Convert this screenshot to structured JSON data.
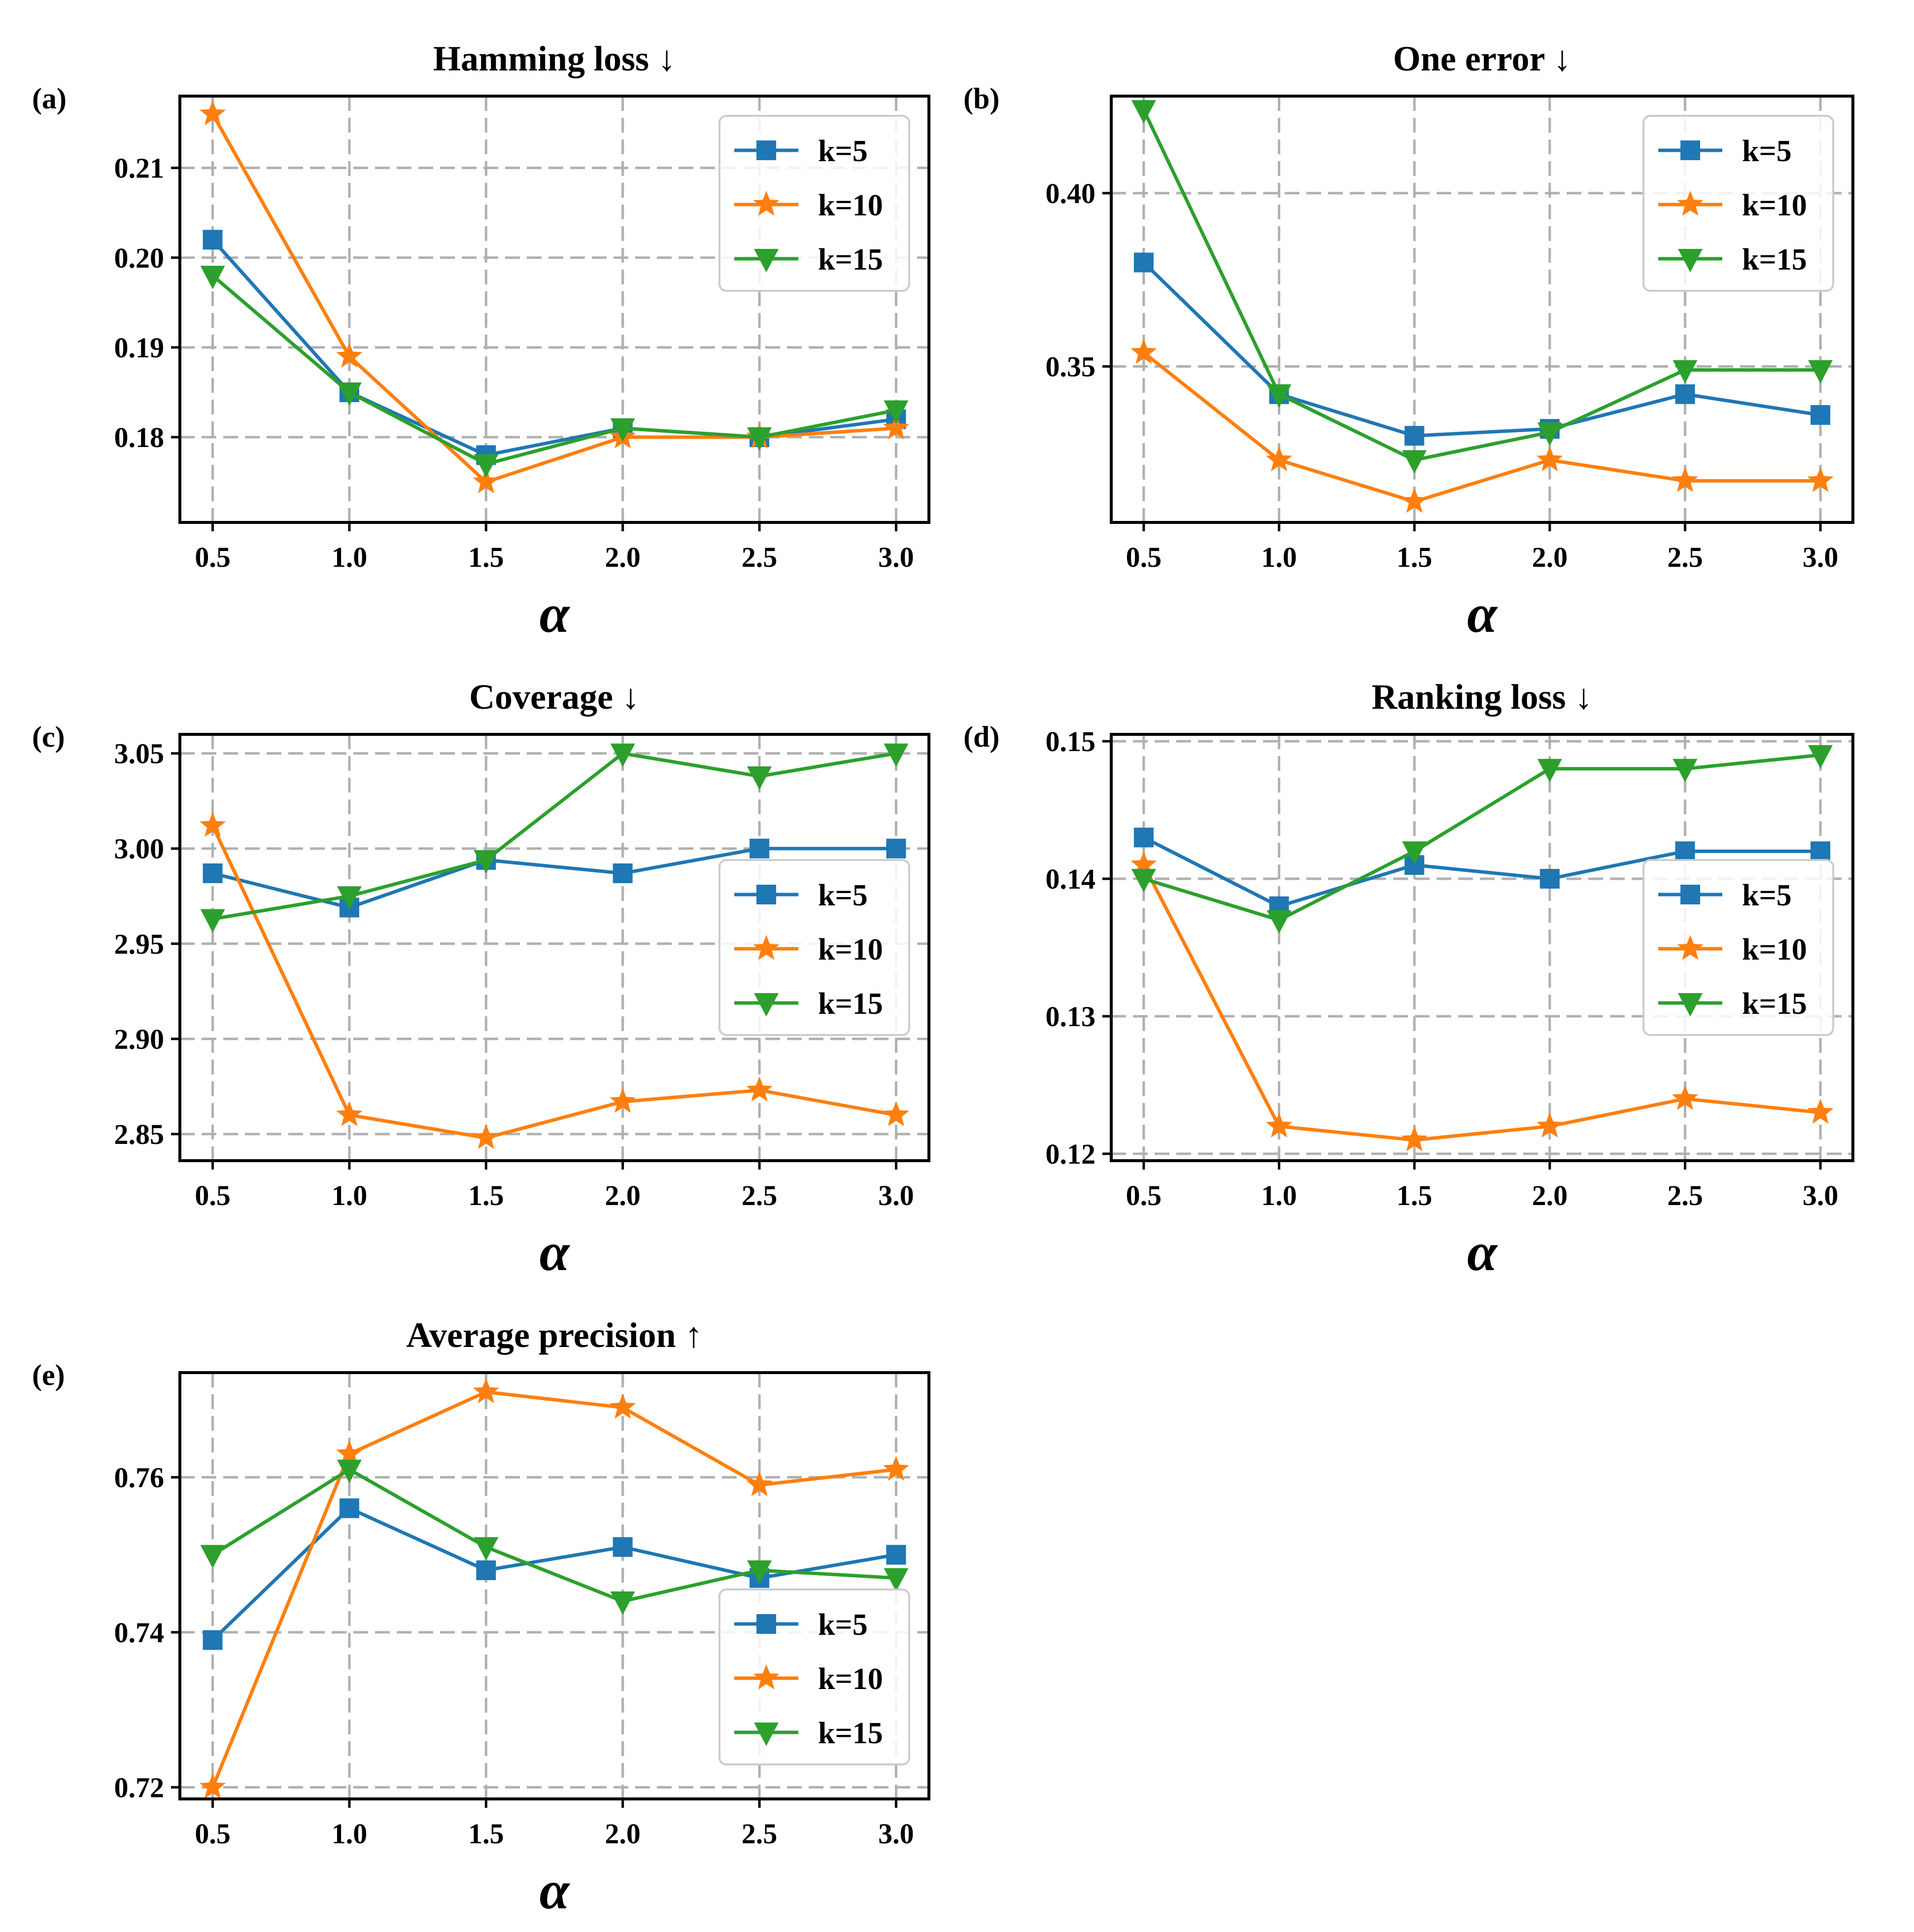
{
  "colors": {
    "k5": "#1f77b4",
    "k10": "#ff7f0e",
    "k15": "#2ca02c"
  },
  "chart_data": [
    {
      "type": "line",
      "panel_label": "(a)",
      "title": "Hamming loss ↓",
      "xlabel": "α",
      "ylabel": "",
      "x": [
        0.5,
        1.0,
        1.5,
        2.0,
        2.5,
        3.0
      ],
      "xticks": [
        "0.5",
        "1.0",
        "1.5",
        "2.0",
        "2.5",
        "3.0"
      ],
      "xlim": [
        0.38,
        3.12
      ],
      "yticks": [
        "0.18",
        "0.19",
        "0.20",
        "0.21"
      ],
      "ylim": [
        0.1705,
        0.218
      ],
      "grid": true,
      "legend_position": "upper-right",
      "series": [
        {
          "name": "k=5",
          "marker": "square",
          "color_key": "k5",
          "values": [
            0.202,
            0.185,
            0.178,
            0.181,
            0.18,
            0.182
          ]
        },
        {
          "name": "k=10",
          "marker": "star",
          "color_key": "k10",
          "values": [
            0.216,
            0.189,
            0.175,
            0.18,
            0.18,
            0.181
          ]
        },
        {
          "name": "k=15",
          "marker": "triangle-down",
          "color_key": "k15",
          "values": [
            0.198,
            0.185,
            0.177,
            0.181,
            0.18,
            0.183
          ]
        }
      ]
    },
    {
      "type": "line",
      "panel_label": "(b)",
      "title": "One error ↓",
      "xlabel": "α",
      "ylabel": "",
      "x": [
        0.5,
        1.0,
        1.5,
        2.0,
        2.5,
        3.0
      ],
      "xticks": [
        "0.5",
        "1.0",
        "1.5",
        "2.0",
        "2.5",
        "3.0"
      ],
      "xlim": [
        0.38,
        3.12
      ],
      "yticks": [
        "0.35",
        "0.40"
      ],
      "ylim": [
        0.305,
        0.428
      ],
      "grid": true,
      "legend_position": "upper-right",
      "series": [
        {
          "name": "k=5",
          "marker": "square",
          "color_key": "k5",
          "values": [
            0.38,
            0.342,
            0.33,
            0.332,
            0.342,
            0.336
          ]
        },
        {
          "name": "k=10",
          "marker": "star",
          "color_key": "k10",
          "values": [
            0.354,
            0.323,
            0.311,
            0.323,
            0.317,
            0.317
          ]
        },
        {
          "name": "k=15",
          "marker": "triangle-down",
          "color_key": "k15",
          "values": [
            0.424,
            0.342,
            0.323,
            0.331,
            0.349,
            0.349
          ]
        }
      ]
    },
    {
      "type": "line",
      "panel_label": "(c)",
      "title": "Coverage ↓",
      "xlabel": "α",
      "ylabel": "",
      "x": [
        0.5,
        1.0,
        1.5,
        2.0,
        2.5,
        3.0
      ],
      "xticks": [
        "0.5",
        "1.0",
        "1.5",
        "2.0",
        "2.5",
        "3.0"
      ],
      "xlim": [
        0.38,
        3.12
      ],
      "yticks": [
        "2.85",
        "2.90",
        "2.95",
        "3.00",
        "3.05"
      ],
      "ylim": [
        2.836,
        3.06
      ],
      "grid": true,
      "legend_position": "center-right",
      "series": [
        {
          "name": "k=5",
          "marker": "square",
          "color_key": "k5",
          "values": [
            2.987,
            2.969,
            2.994,
            2.987,
            3.0,
            3.0
          ]
        },
        {
          "name": "k=10",
          "marker": "star",
          "color_key": "k10",
          "values": [
            3.012,
            2.86,
            2.848,
            2.867,
            2.873,
            2.86
          ]
        },
        {
          "name": "k=15",
          "marker": "triangle-down",
          "color_key": "k15",
          "values": [
            2.963,
            2.975,
            2.994,
            3.05,
            3.038,
            3.05
          ]
        }
      ]
    },
    {
      "type": "line",
      "panel_label": "(d)",
      "title": "Ranking loss ↓",
      "xlabel": "α",
      "ylabel": "",
      "x": [
        0.5,
        1.0,
        1.5,
        2.0,
        2.5,
        3.0
      ],
      "xticks": [
        "0.5",
        "1.0",
        "1.5",
        "2.0",
        "2.5",
        "3.0"
      ],
      "xlim": [
        0.38,
        3.12
      ],
      "yticks": [
        "0.12",
        "0.13",
        "0.14",
        "0.15"
      ],
      "ylim": [
        0.1195,
        0.1505
      ],
      "grid": true,
      "legend_position": "center-right",
      "series": [
        {
          "name": "k=5",
          "marker": "square",
          "color_key": "k5",
          "values": [
            0.143,
            0.138,
            0.141,
            0.14,
            0.142,
            0.142
          ]
        },
        {
          "name": "k=10",
          "marker": "star",
          "color_key": "k10",
          "values": [
            0.141,
            0.122,
            0.121,
            0.122,
            0.124,
            0.123
          ]
        },
        {
          "name": "k=15",
          "marker": "triangle-down",
          "color_key": "k15",
          "values": [
            0.14,
            0.137,
            0.142,
            0.148,
            0.148,
            0.149
          ]
        }
      ]
    },
    {
      "type": "line",
      "panel_label": "(e)",
      "title": "Average precision ↑",
      "xlabel": "α",
      "ylabel": "",
      "x": [
        0.5,
        1.0,
        1.5,
        2.0,
        2.5,
        3.0
      ],
      "xticks": [
        "0.5",
        "1.0",
        "1.5",
        "2.0",
        "2.5",
        "3.0"
      ],
      "xlim": [
        0.38,
        3.12
      ],
      "yticks": [
        "0.72",
        "0.74",
        "0.76"
      ],
      "ylim": [
        0.7185,
        0.7735
      ],
      "grid": true,
      "legend_position": "lower-right",
      "series": [
        {
          "name": "k=5",
          "marker": "square",
          "color_key": "k5",
          "values": [
            0.739,
            0.756,
            0.748,
            0.751,
            0.747,
            0.75
          ]
        },
        {
          "name": "k=10",
          "marker": "star",
          "color_key": "k10",
          "values": [
            0.72,
            0.763,
            0.771,
            0.769,
            0.759,
            0.761
          ]
        },
        {
          "name": "k=15",
          "marker": "triangle-down",
          "color_key": "k15",
          "values": [
            0.75,
            0.761,
            0.751,
            0.744,
            0.748,
            0.747
          ]
        }
      ]
    }
  ]
}
